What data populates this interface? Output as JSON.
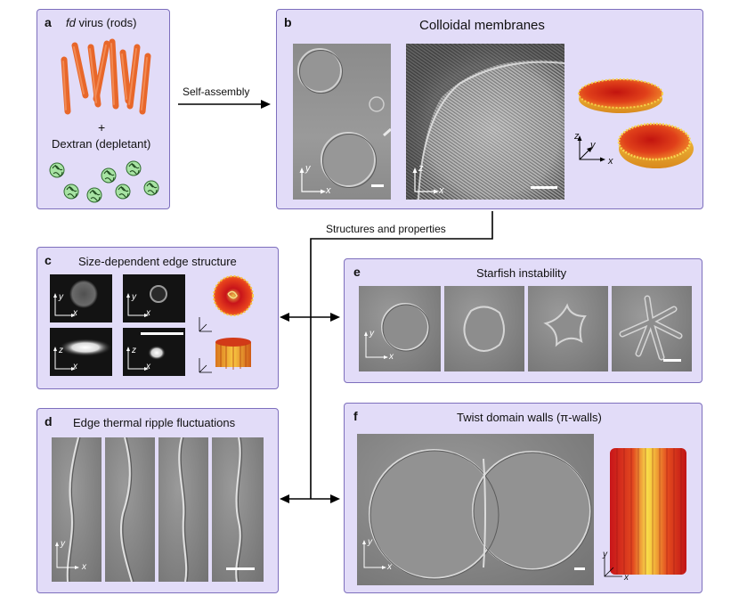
{
  "panel_a": {
    "label": "a",
    "rods_title_italic": "fd",
    "rods_title_rest": " virus (rods)",
    "plus": "+",
    "depletant_title": "Dextran (depletant)"
  },
  "arrow_main": {
    "label": "Self-assembly"
  },
  "panel_b": {
    "label": "b",
    "title": "Colloidal membranes"
  },
  "connector": {
    "label": "Structures and properties"
  },
  "panel_c": {
    "label": "c",
    "title": "Size-dependent edge structure"
  },
  "panel_d": {
    "label": "d",
    "title": "Edge thermal ripple fluctuations"
  },
  "panel_e": {
    "label": "e",
    "title": "Starfish instability"
  },
  "panel_f": {
    "label": "f",
    "title": "Twist domain walls (π-walls)"
  },
  "axes": {
    "x": "x",
    "y": "y",
    "z": "z"
  },
  "colors": {
    "panel_bg": "#e2dcf8",
    "panel_border": "#7d6fbd",
    "rod": "#f07a3a",
    "dextran": "#a7e3a3"
  }
}
